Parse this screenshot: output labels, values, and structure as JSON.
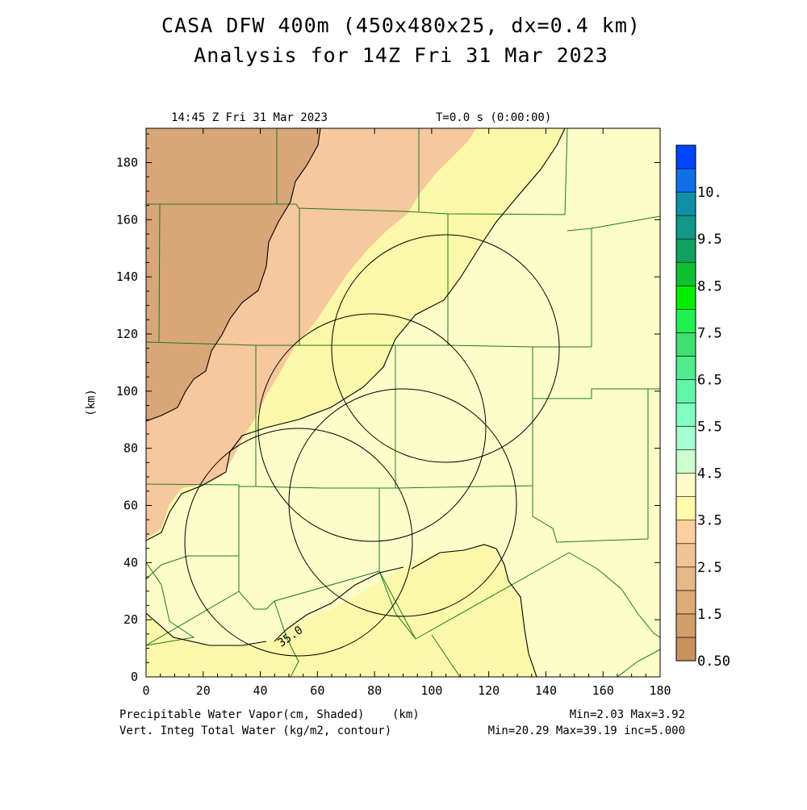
{
  "header": {
    "title_line1": "CASA DFW 400m (450x480x25, dx=0.4 km)",
    "title_line2": "Analysis for 14Z Fri 31 Mar 2023",
    "valid_time": "14:45 Z Fri 31 Mar 2023",
    "model_time": "T=0.0 s (0:00:00)"
  },
  "axes": {
    "x_ticks": [
      "0",
      "20",
      "40",
      "60",
      "80",
      "100",
      "120",
      "140",
      "160",
      "180"
    ],
    "y_ticks": [
      "0",
      "20",
      "40",
      "60",
      "80",
      "100",
      "120",
      "140",
      "160",
      "180"
    ],
    "x_unit": "(km)",
    "y_unit": "(km)",
    "x_range": [
      0,
      180
    ],
    "y_range": [
      0,
      192
    ]
  },
  "footer": {
    "shaded_label": "Precipitable Water Vapor(cm, Shaded)",
    "contour_label": "Vert. Integ Total Water (kg/m2, contour)",
    "shaded_stats": "Min=2.03 Max=3.92",
    "contour_stats": "Min=20.29 Max=39.19 inc=5.000"
  },
  "contour_label": "35.0",
  "colorbar": {
    "labels": [
      "0.50",
      "1.5",
      "2.5",
      "3.5",
      "4.5",
      "5.5",
      "6.5",
      "7.5",
      "8.5",
      "9.5",
      "10."
    ],
    "colors": [
      "#c8925e",
      "#d29f6c",
      "#dcab78",
      "#e6b886",
      "#f0c594",
      "#fbcf9e",
      "#fefcaa",
      "#fefdc8",
      "#ccffcc",
      "#a6ffd2",
      "#80ffc0",
      "#60f6a8",
      "#50ec90",
      "#40e070",
      "#22f050",
      "#00ee00",
      "#10c030",
      "#10a060",
      "#10988a",
      "#1090a8",
      "#1070e8",
      "#0044ff"
    ]
  },
  "map_fills": {
    "dark_tan": "#d8a679",
    "tan": "#f7c79d",
    "yellow": "#fbf8aa",
    "light_yellow": "#fdfdc9",
    "county_lines": "#1e7a1e"
  },
  "radar_rings": [
    {
      "name": "radar-ring-1",
      "cx_km": 107,
      "cy_km": 116,
      "r_km": 39
    },
    {
      "name": "radar-ring-2",
      "cx_km": 79,
      "cy_km": 88,
      "r_km": 39
    },
    {
      "name": "radar-ring-3",
      "cx_km": 90,
      "cy_km": 62,
      "r_km": 39
    },
    {
      "name": "radar-ring-4",
      "cx_km": 54,
      "cy_km": 48,
      "r_km": 39
    }
  ]
}
